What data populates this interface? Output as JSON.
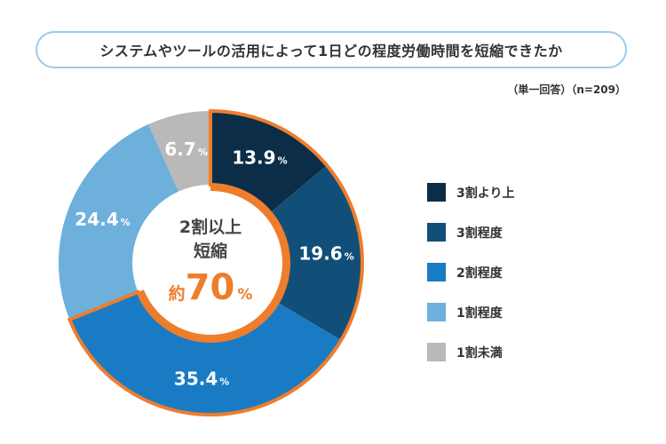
{
  "chart_data": {
    "type": "pie",
    "subtype": "donut",
    "title": "システムやツールの活用によって1日どの程度労働時間を短縮できたか",
    "note": "（単一回答）（n=209）",
    "unit": "%",
    "categories": [
      "3割より上",
      "3割程度",
      "2割程度",
      "1割程度",
      "1割未満"
    ],
    "values": [
      13.9,
      19.6,
      35.4,
      24.4,
      6.7
    ],
    "value_labels": [
      "13.9",
      "19.6",
      "35.4",
      "24.4",
      "6.7"
    ],
    "colors": [
      "#0b2d48",
      "#124f78",
      "#197bc3",
      "#6db0dc",
      "#b9b9b9"
    ],
    "highlight": {
      "categories": [
        "3割より上",
        "3割程度",
        "2割程度"
      ],
      "color": "#ee7d2c",
      "line1": "2割以上",
      "line2": "短縮",
      "prefix": "約",
      "value": "70",
      "unit": "%"
    },
    "start": "top",
    "direction": "clockwise",
    "legend_position": "right"
  }
}
